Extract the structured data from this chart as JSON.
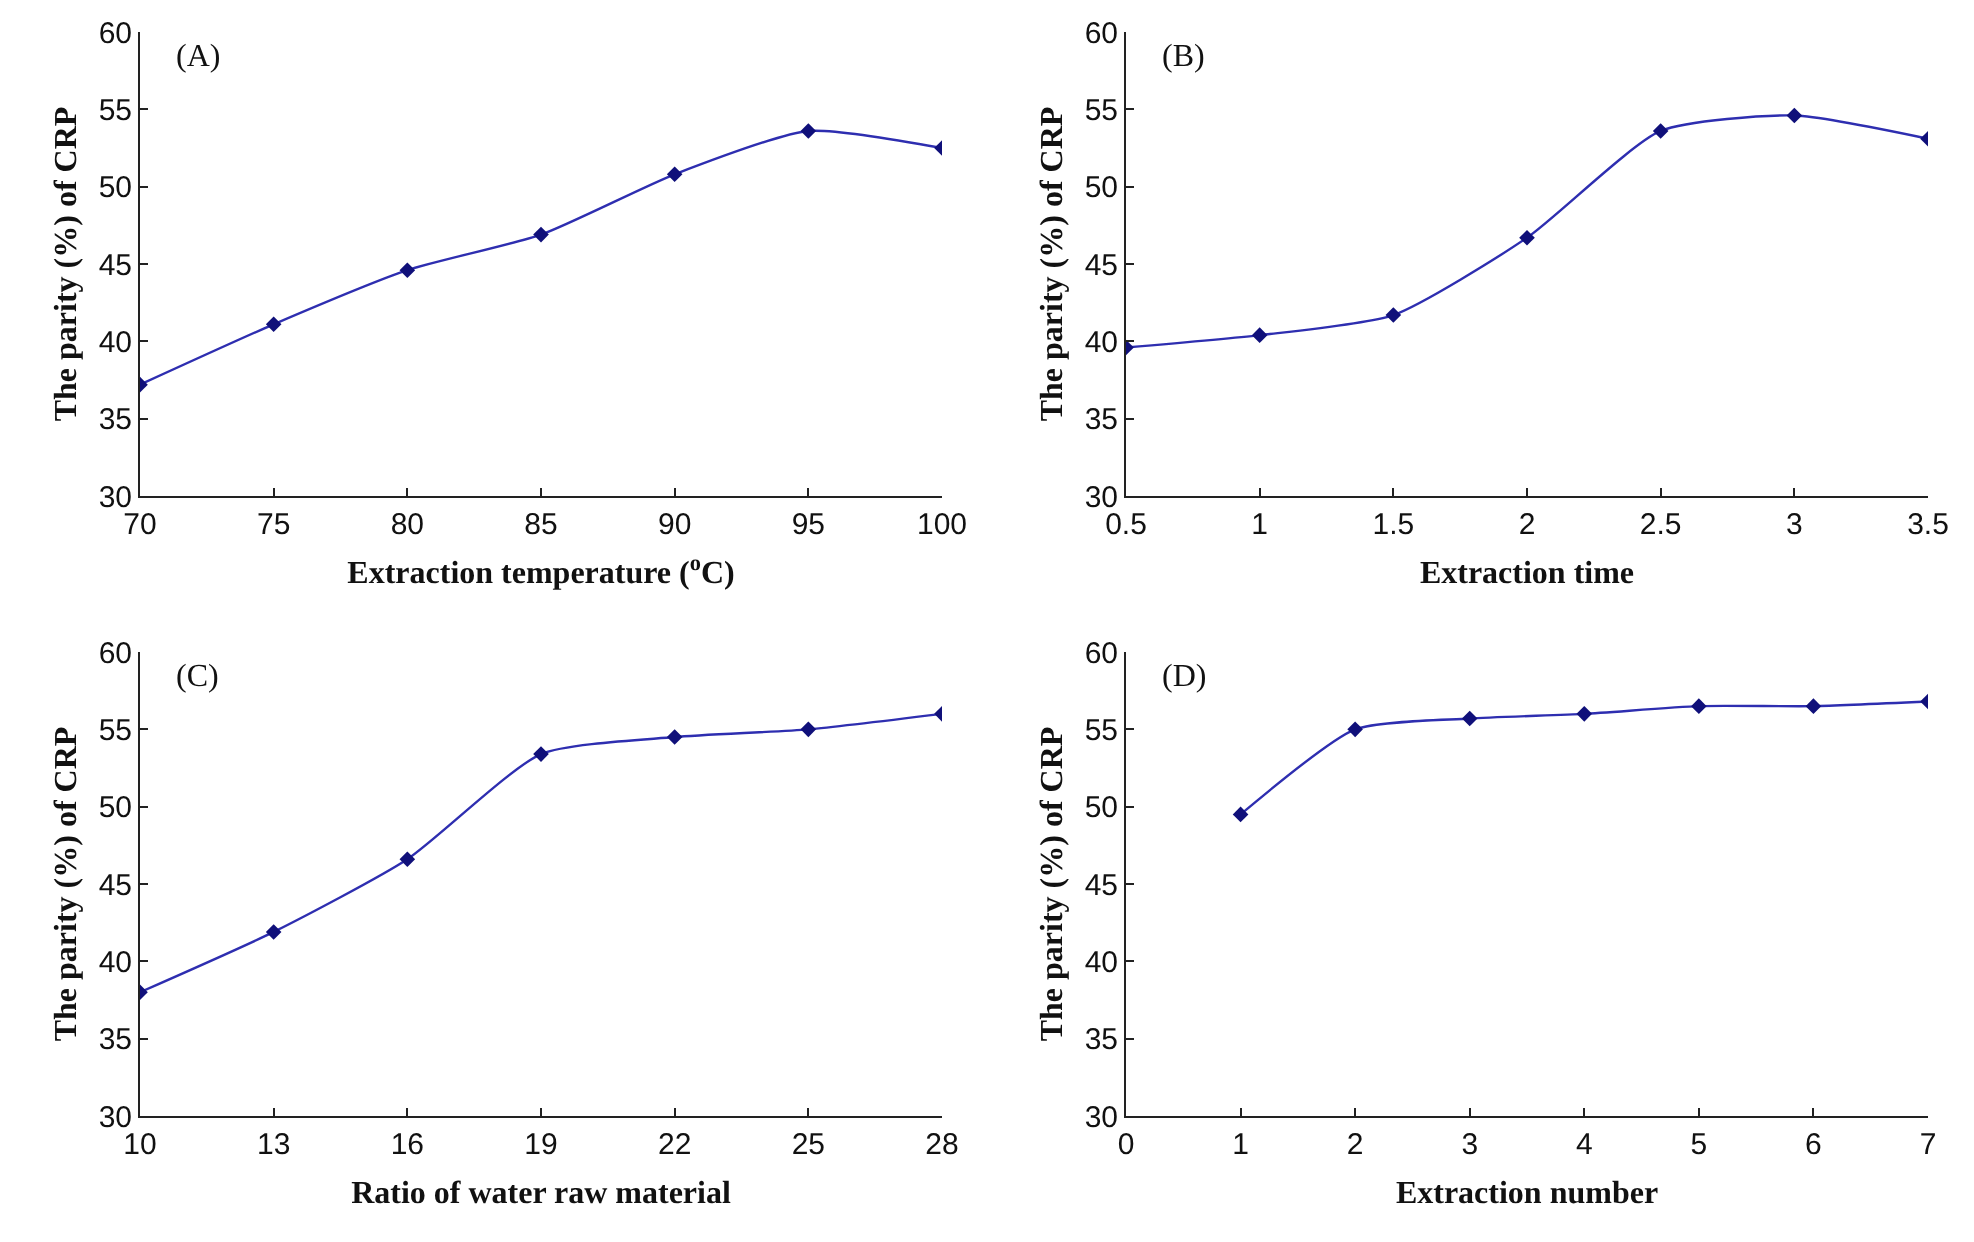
{
  "chart_data": [
    {
      "type": "line",
      "annotations": [
        "(A)"
      ],
      "xlabel": "Extraction temperature ($^{o}$C)",
      "ylabel": "The parity (%) of CRP",
      "x": [
        70,
        75,
        80,
        85,
        90,
        95,
        100
      ],
      "series": [
        {
          "color": "#2e2eb0",
          "values": [
            37.2,
            41.1,
            44.6,
            46.9,
            50.8,
            53.6,
            52.5
          ]
        }
      ],
      "xlim": [
        70,
        100
      ],
      "xticks": [
        70,
        75,
        80,
        85,
        90,
        95,
        100
      ],
      "ylim": [
        30,
        60
      ],
      "yticks": [
        30,
        35,
        40,
        45,
        50,
        55,
        60
      ],
      "grid": false,
      "marker": "diamond",
      "line_style": "solid"
    },
    {
      "type": "line",
      "annotations": [
        "(B)"
      ],
      "xlabel": "Extraction time",
      "ylabel": "The parity (%) of CRP",
      "x": [
        0.5,
        1,
        1.5,
        2,
        2.5,
        3,
        3.5
      ],
      "series": [
        {
          "color": "#2e2eb0",
          "values": [
            39.6,
            40.4,
            41.7,
            46.7,
            53.6,
            54.6,
            53.1
          ]
        }
      ],
      "xlim": [
        0.5,
        3.5
      ],
      "xticks": [
        0.5,
        1,
        1.5,
        2,
        2.5,
        3,
        3.5
      ],
      "ylim": [
        30,
        60
      ],
      "yticks": [
        30,
        35,
        40,
        45,
        50,
        55,
        60
      ],
      "grid": false,
      "marker": "diamond",
      "line_style": "solid"
    },
    {
      "type": "line",
      "annotations": [
        "(C)"
      ],
      "xlabel": "Ratio of water raw material",
      "ylabel": "The parity (%) of CRP",
      "categories": [
        "10",
        "13",
        "16",
        "19",
        "22",
        "25",
        "28"
      ],
      "series": [
        {
          "color": "#2e2eb0",
          "values": [
            38.0,
            41.9,
            46.6,
            53.4,
            54.5,
            55.0,
            56.0
          ]
        }
      ],
      "ylim": [
        30,
        60
      ],
      "yticks": [
        30,
        35,
        40,
        45,
        50,
        55,
        60
      ],
      "grid": false,
      "marker": "diamond",
      "line_style": "solid"
    },
    {
      "type": "line",
      "annotations": [
        "(D)"
      ],
      "xlabel": "Extraction number",
      "ylabel": "The parity (%) of CRP",
      "x": [
        1,
        2,
        3,
        4,
        5,
        6,
        7
      ],
      "series": [
        {
          "color": "#2e2eb0",
          "values": [
            49.5,
            55.0,
            55.7,
            56.0,
            56.5,
            56.5,
            56.8
          ]
        }
      ],
      "xlim": [
        0,
        7
      ],
      "xticks": [
        0,
        1,
        2,
        3,
        4,
        5,
        6,
        7
      ],
      "ylim": [
        30,
        60
      ],
      "yticks": [
        30,
        35,
        40,
        45,
        50,
        55,
        60
      ],
      "grid": false,
      "marker": "diamond",
      "line_style": "solid"
    }
  ]
}
